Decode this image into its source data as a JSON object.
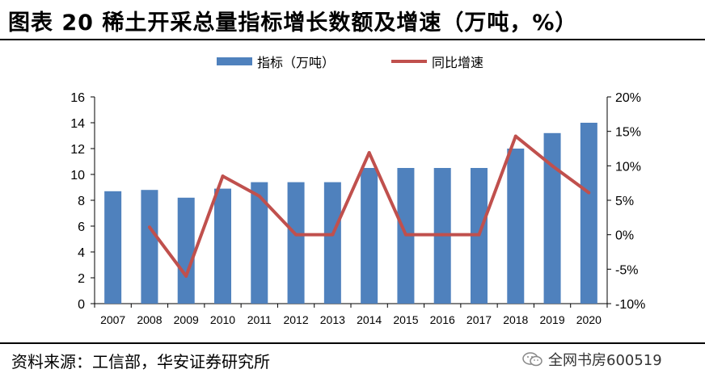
{
  "title": "图表 20 稀土开采总量指标增长数额及增速（万吨，%）",
  "source": "资料来源：工信部，华安证券研究所",
  "watermark": "全网书房600519",
  "colors": {
    "bar": "#4F81BD",
    "line": "#C0504D"
  },
  "chart_data": {
    "type": "bar",
    "categories": [
      "2007",
      "2008",
      "2009",
      "2010",
      "2011",
      "2012",
      "2013",
      "2014",
      "2015",
      "2016",
      "2017",
      "2018",
      "2019",
      "2020"
    ],
    "series": [
      {
        "name": "指标（万吨）",
        "type": "bar",
        "axis": "left",
        "values": [
          8.7,
          8.8,
          8.2,
          8.9,
          9.4,
          9.4,
          9.4,
          10.5,
          10.5,
          10.5,
          10.5,
          12.0,
          13.2,
          14.0
        ]
      },
      {
        "name": "同比增速",
        "type": "line",
        "axis": "right",
        "values": [
          null,
          1.1,
          -6.0,
          8.5,
          5.6,
          0.0,
          0.0,
          11.9,
          0.0,
          0.0,
          0.0,
          14.3,
          10.0,
          6.1
        ]
      }
    ],
    "y_left": {
      "min": 0,
      "max": 16,
      "step": 2,
      "ticks": [
        "0",
        "2",
        "4",
        "6",
        "8",
        "10",
        "12",
        "14",
        "16"
      ]
    },
    "y_right": {
      "min": -10,
      "max": 20,
      "step": 5,
      "ticks": [
        "-10%",
        "-5%",
        "0%",
        "5%",
        "10%",
        "15%",
        "20%"
      ]
    },
    "grid": false,
    "legend_position": "top"
  }
}
